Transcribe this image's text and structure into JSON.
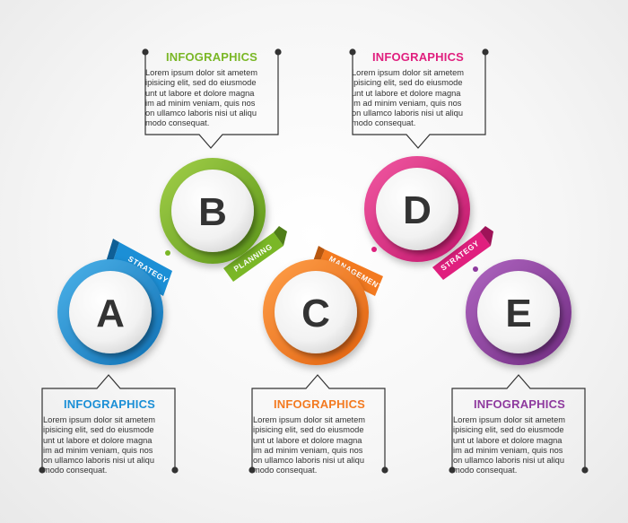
{
  "colors": {
    "a": "#1b8fd6",
    "b": "#7ab726",
    "c": "#f37a20",
    "d": "#e01f7e",
    "e": "#8e3a9e",
    "line": "#333333"
  },
  "steps": [
    {
      "letter": "A",
      "title": "INFOGRAPHICS",
      "lines": [
        "Lorem ipsum dolor sit ametem",
        "ipisicing elit, sed do eiusmode",
        "unt ut labore et dolore magna",
        "im ad minim veniam, quis nos",
        "on ullamco laboris nisi ut aliqu",
        "modo consequat."
      ]
    },
    {
      "letter": "B",
      "title": "INFOGRAPHICS",
      "lines": [
        "Lorem ipsum dolor sit ametem",
        "ipisicing elit, sed do eiusmode",
        "unt ut labore et dolore magna",
        "im ad minim veniam, quis nos",
        "on ullamco laboris nisi ut aliqu",
        "modo consequat."
      ]
    },
    {
      "letter": "C",
      "title": "INFOGRAPHICS",
      "lines": [
        "Lorem ipsum dolor sit ametem",
        "ipisicing elit, sed do eiusmode",
        "unt ut labore et dolore magna",
        "im ad minim veniam, quis nos",
        "on ullamco laboris nisi ut aliqu",
        "modo consequat."
      ]
    },
    {
      "letter": "D",
      "title": "INFOGRAPHICS",
      "lines": [
        "Lorem ipsum dolor sit ametem",
        "ipisicing elit, sed do eiusmode",
        "unt ut labore et dolore magna",
        "im ad minim veniam, quis nos",
        "on ullamco laboris nisi ut aliqu",
        "modo consequat."
      ]
    },
    {
      "letter": "E",
      "title": "INFOGRAPHICS",
      "lines": [
        "Lorem ipsum dolor sit ametem",
        "ipisicing elit, sed do eiusmode",
        "unt ut labore et dolore magna",
        "im ad minim veniam, quis nos",
        "on ullamco laboris nisi ut aliqu",
        "modo consequat."
      ]
    }
  ],
  "ribbons": {
    "strategy_ab": "STRATEGY",
    "planning_bc": "PLANNING",
    "management_cd": "MANAGEMENT",
    "strategy_de": "STRATEGY"
  }
}
